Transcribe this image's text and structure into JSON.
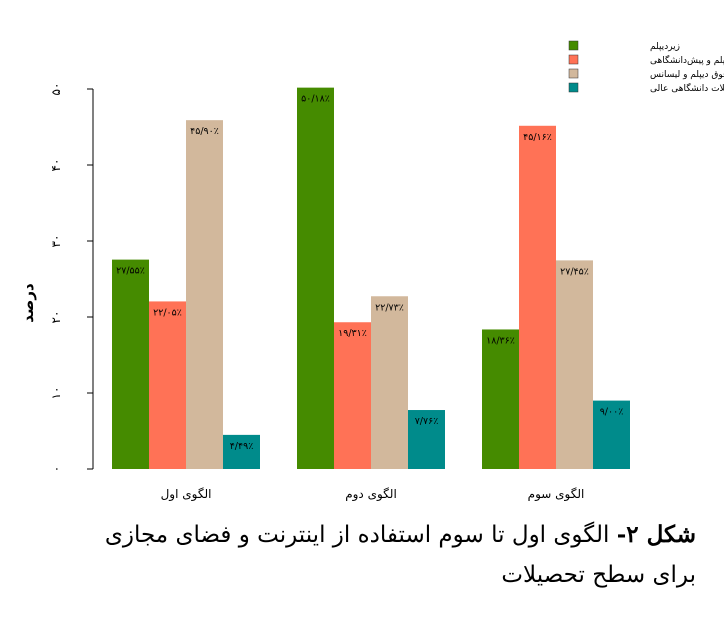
{
  "chart_data": {
    "type": "bar",
    "title": "",
    "xlabel": "",
    "ylabel": "درصد",
    "ylim": [
      0,
      50
    ],
    "yticks": [
      0,
      10,
      20,
      30,
      40,
      50
    ],
    "ytick_labels": [
      "۰",
      "۱۰",
      "۲۰",
      "۳۰",
      "۴۰",
      "۵۰"
    ],
    "categories": [
      "الگوی اول",
      "الگوی دوم",
      "الگوی سوم"
    ],
    "legend_position": "top-right",
    "grid": false,
    "series": [
      {
        "name": "زیردیپلم",
        "color": "#458b00",
        "values": [
          27.55,
          50.18,
          18.36
        ],
        "labels": [
          "۲۷/۵۵٪",
          "۵۰/۱۸٪",
          "۱۸/۳۶٪"
        ]
      },
      {
        "name": "دیپلم و پیش‌دانشگاهی",
        "color": "#ff7256",
        "values": [
          22.05,
          19.31,
          45.16
        ],
        "labels": [
          "۲۲/۰۵٪",
          "۱۹/۳۱٪",
          "۴۵/۱۶٪"
        ]
      },
      {
        "name": "فوق دیپلم و لیسانس",
        "color": "#d2b89c",
        "values": [
          45.9,
          22.73,
          27.45
        ],
        "labels": [
          "۴۵/۹۰٪",
          "۲۲/۷۳٪",
          "۲۷/۴۵٪"
        ]
      },
      {
        "name": "تحصیلات دانشگاهی عالی",
        "color": "#008b8b",
        "values": [
          4.49,
          7.76,
          9.0
        ],
        "labels": [
          "۴/۴۹٪",
          "۷/۷۶٪",
          "۹/۰۰٪"
        ]
      }
    ]
  },
  "caption": {
    "figure_no": "شکل ۲-",
    "text": "الگوی اول تا سوم استفاده از اینترنت و فضای مجازی برای سطح تحصیلات"
  }
}
